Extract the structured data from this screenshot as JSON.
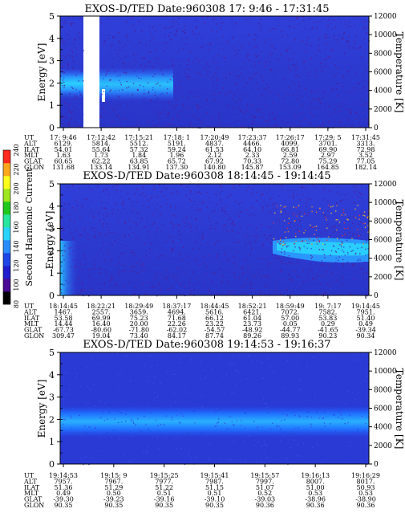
{
  "colorbar": {
    "label": "Second Harmonic Current",
    "ticks": [
      "80",
      "100",
      "120",
      "140",
      "160",
      "180",
      "200",
      "220",
      "240"
    ],
    "colors": [
      "#000000",
      "#4b0a96",
      "#1e1ecc",
      "#1e46e6",
      "#2a8cff",
      "#2ad2ff",
      "#26e6a0",
      "#22c81e",
      "#9ee61e",
      "#ffff1e",
      "#ffa81e",
      "#ff2a1e"
    ]
  },
  "chart_data": [
    {
      "type": "heatmap",
      "title": "EXOS-D/TED",
      "date_label": "Date:960308",
      "time_range": "17: 9:46 - 17:31:45",
      "ylabel": "Energy [eV]",
      "ylabel_right": "Temperature [K]",
      "ylim": [
        0,
        5
      ],
      "yticks": [
        "0",
        "1",
        "2",
        "3",
        "4",
        "5"
      ],
      "y2lim": [
        0,
        12000
      ],
      "y2ticks": [
        "0",
        "2000",
        "4000",
        "6000",
        "8000",
        "10000",
        "12000"
      ],
      "data_gap": {
        "from": "17:11:30",
        "to": "17:12:20"
      },
      "row_labels": [
        "UT",
        "ALT",
        "ILAT",
        "MLT",
        "GLAT",
        "GLON"
      ],
      "columns": [
        [
          "17: 9:46",
          "6129.",
          "54.01",
          "1.63",
          "60.65",
          "131.68"
        ],
        [
          "17:12:42",
          "5814.",
          "55.64",
          "1.73",
          "62.22",
          "133.14"
        ],
        [
          "17:15:21",
          "5512.",
          "57.32",
          "1.84",
          "63.85",
          "134.91"
        ],
        [
          "17:18: 1",
          "5191.",
          "59.24",
          "1.96",
          "65.72",
          "137.30"
        ],
        [
          "17:20:49",
          "4837.",
          "61.53",
          "2.12",
          "67.92",
          "140.80"
        ],
        [
          "17:23:37",
          "4466.",
          "64.10",
          "2.33",
          "70.33",
          "145.87"
        ],
        [
          "17:26:17",
          "4099.",
          "66.81",
          "2.59",
          "72.80",
          "153.09"
        ],
        [
          "17:29: 5",
          "3701.",
          "69.90",
          "2.97",
          "75.29",
          "164.85"
        ],
        [
          "17:31:45",
          "3313.",
          "72.98",
          "3.52",
          "77.05",
          "182.14"
        ]
      ]
    },
    {
      "type": "heatmap",
      "title": "EXOS-D/TED",
      "date_label": "Date:960308",
      "time_range": "18:14:45 - 19:14:45",
      "ylabel": "Energy [eV]",
      "ylabel_right": "Temperature [K]",
      "ylim": [
        0,
        5
      ],
      "yticks": [
        "0",
        "1",
        "2",
        "3",
        "4",
        "5"
      ],
      "y2lim": [
        0,
        12000
      ],
      "y2ticks": [
        "0",
        "2000",
        "4000",
        "6000",
        "8000",
        "10000",
        "12000"
      ],
      "row_labels": [
        "UT",
        "ALT",
        "ILAT",
        "MLT",
        "GLAT",
        "GLON"
      ],
      "columns": [
        [
          "18:14:45",
          "1467.",
          "53.58",
          "14.44",
          "-67.73",
          "309.47"
        ],
        [
          "18:22:21",
          "2557.",
          "69.99",
          "16.40",
          "-80.60",
          "19.04"
        ],
        [
          "18:29:49",
          "3659.",
          "75.23",
          "20.00",
          "-71.80",
          "73.40"
        ],
        [
          "18:37:17",
          "4694.",
          "71.68",
          "22.26",
          "-62.02",
          "84.17"
        ],
        [
          "18:44:45",
          "5616.",
          "66.12",
          "23.22",
          "-54.57",
          "87.74"
        ],
        [
          "18:52:21",
          "6421.",
          "61.04",
          "23.73",
          "-48.92",
          "89.26"
        ],
        [
          "18:59:49",
          "7072.",
          "57.00",
          "0.05",
          "-44.77",
          "89.93"
        ],
        [
          "19: 7:17",
          "7582.",
          "53.83",
          "0.29",
          "-41.65",
          "90.23"
        ],
        [
          "19:14:45",
          "7951.",
          "51.40",
          "0.49",
          "-39.34",
          "90.34"
        ]
      ]
    },
    {
      "type": "heatmap",
      "title": "EXOS-D/TED",
      "date_label": "Date:960308",
      "time_range": "19:14:53 - 19:16:37",
      "ylabel": "Energy [eV]",
      "ylabel_right": "Temperature [K]",
      "ylim": [
        0,
        5
      ],
      "yticks": [
        "0",
        "1",
        "2",
        "3",
        "4",
        "5"
      ],
      "y2lim": [
        0,
        12000
      ],
      "y2ticks": [
        "0",
        "2000",
        "4000",
        "6000",
        "8000",
        "10000",
        "12000"
      ],
      "row_labels": [
        "UT",
        "ALT",
        "ILAT",
        "MLT",
        "GLAT",
        "GLON"
      ],
      "columns": [
        [
          "19:14:53",
          "7957.",
          "51.36",
          "0.49",
          "-39.30",
          "90.35"
        ],
        [
          "19:15: 9",
          "7967.",
          "51.29",
          "0.50",
          "-39.23",
          "90.35"
        ],
        [
          "19:15:25",
          "7977.",
          "51.22",
          "0.51",
          "-39.16",
          "90.35"
        ],
        [
          "19:15:41",
          "7987.",
          "51.15",
          "0.51",
          "-39.10",
          "90.35"
        ],
        [
          "19:15:57",
          "7997.",
          "51.07",
          "0.52",
          "-39.03",
          "90.36"
        ],
        [
          "19:16:13",
          "8007.",
          "51.00",
          "0.53",
          "-38.96",
          "90.36"
        ],
        [
          "19:16:29",
          "8017.",
          "50.93",
          "0.53",
          "-38.90",
          "90.36"
        ]
      ]
    }
  ]
}
